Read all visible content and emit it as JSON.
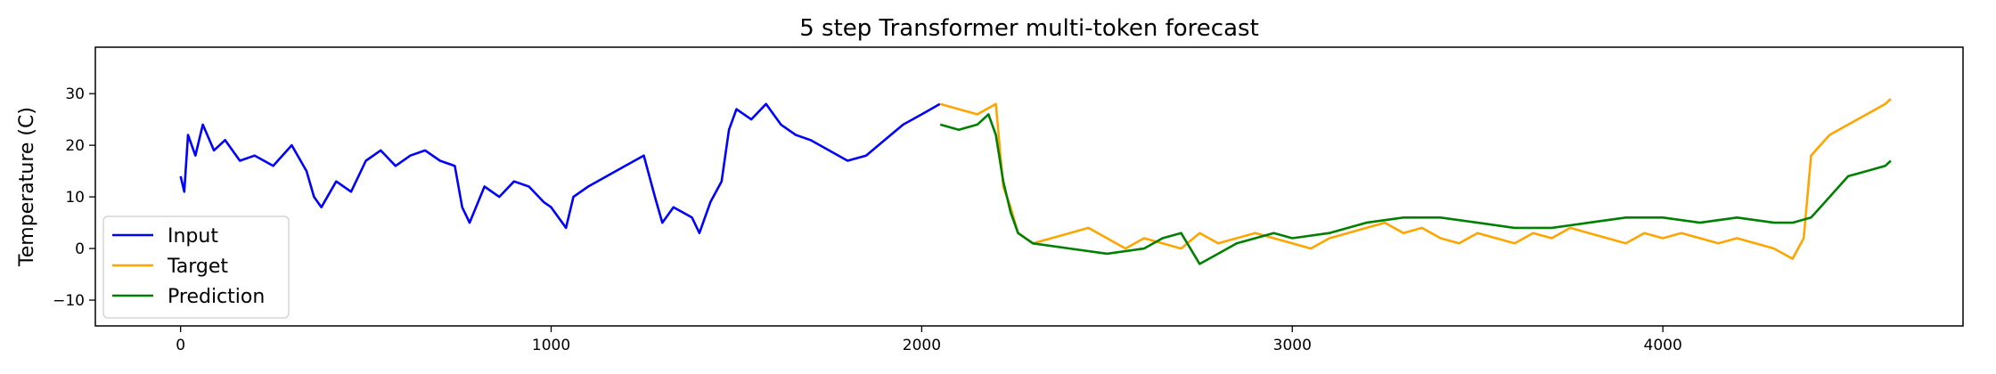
{
  "chart_data": {
    "type": "line",
    "title": "5 step Transformer multi-token forecast",
    "xlabel": "",
    "ylabel": "Temperature (C)",
    "xlim": [
      -230,
      4810
    ],
    "ylim": [
      -15,
      39
    ],
    "xticks": [
      0,
      1000,
      2000,
      3000,
      4000
    ],
    "yticks": [
      -10,
      0,
      10,
      20,
      30
    ],
    "grid": false,
    "legend_position": "lower-left",
    "series": [
      {
        "name": "Input",
        "color": "#0000ff",
        "x": [
          0,
          10,
          20,
          40,
          60,
          90,
          120,
          160,
          200,
          250,
          300,
          340,
          360,
          380,
          420,
          460,
          500,
          540,
          580,
          620,
          660,
          700,
          740,
          760,
          780,
          820,
          860,
          900,
          940,
          980,
          1000,
          1040,
          1060,
          1100,
          1150,
          1200,
          1250,
          1280,
          1300,
          1330,
          1380,
          1400,
          1430,
          1460,
          1480,
          1500,
          1540,
          1580,
          1620,
          1660,
          1700,
          1750,
          1800,
          1850,
          1900,
          1950,
          2000,
          2049
        ],
        "y": [
          14,
          11,
          22,
          18,
          24,
          19,
          21,
          17,
          18,
          16,
          20,
          15,
          10,
          8,
          13,
          11,
          17,
          19,
          16,
          18,
          19,
          17,
          16,
          8,
          5,
          12,
          10,
          13,
          12,
          9,
          8,
          4,
          10,
          12,
          14,
          16,
          18,
          10,
          5,
          8,
          6,
          3,
          9,
          13,
          23,
          27,
          25,
          28,
          24,
          22,
          21,
          19,
          17,
          18,
          21,
          24,
          26,
          28
        ]
      },
      {
        "name": "Target",
        "color": "#ffa500",
        "x": [
          2050,
          2100,
          2150,
          2200,
          2220,
          2240,
          2260,
          2300,
          2350,
          2400,
          2450,
          2500,
          2550,
          2600,
          2650,
          2700,
          2750,
          2800,
          2850,
          2900,
          2950,
          3000,
          3050,
          3100,
          3150,
          3200,
          3250,
          3300,
          3350,
          3400,
          3450,
          3500,
          3550,
          3600,
          3650,
          3700,
          3750,
          3800,
          3850,
          3900,
          3950,
          4000,
          4050,
          4100,
          4150,
          4200,
          4250,
          4300,
          4350,
          4380,
          4400,
          4450,
          4500,
          4550,
          4600,
          4615
        ],
        "y": [
          28,
          27,
          26,
          28,
          12,
          8,
          3,
          1,
          2,
          3,
          4,
          2,
          0,
          2,
          1,
          0,
          3,
          1,
          2,
          3,
          2,
          1,
          0,
          2,
          3,
          4,
          5,
          3,
          4,
          2,
          1,
          3,
          2,
          1,
          3,
          2,
          4,
          3,
          2,
          1,
          3,
          2,
          3,
          2,
          1,
          2,
          1,
          0,
          -2,
          2,
          18,
          22,
          24,
          26,
          28,
          29
        ]
      },
      {
        "name": "Prediction",
        "color": "#008000",
        "x": [
          2050,
          2100,
          2150,
          2180,
          2200,
          2220,
          2240,
          2260,
          2300,
          2400,
          2500,
          2600,
          2650,
          2700,
          2750,
          2800,
          2850,
          2900,
          2950,
          3000,
          3100,
          3200,
          3300,
          3400,
          3500,
          3600,
          3700,
          3800,
          3900,
          4000,
          4100,
          4200,
          4300,
          4350,
          4400,
          4450,
          4500,
          4550,
          4600,
          4615
        ],
        "y": [
          24,
          23,
          24,
          26,
          22,
          13,
          7,
          3,
          1,
          0,
          -1,
          0,
          2,
          3,
          -3,
          -1,
          1,
          2,
          3,
          2,
          3,
          5,
          6,
          6,
          5,
          4,
          4,
          5,
          6,
          6,
          5,
          6,
          5,
          5,
          6,
          10,
          14,
          15,
          16,
          17
        ]
      }
    ]
  }
}
